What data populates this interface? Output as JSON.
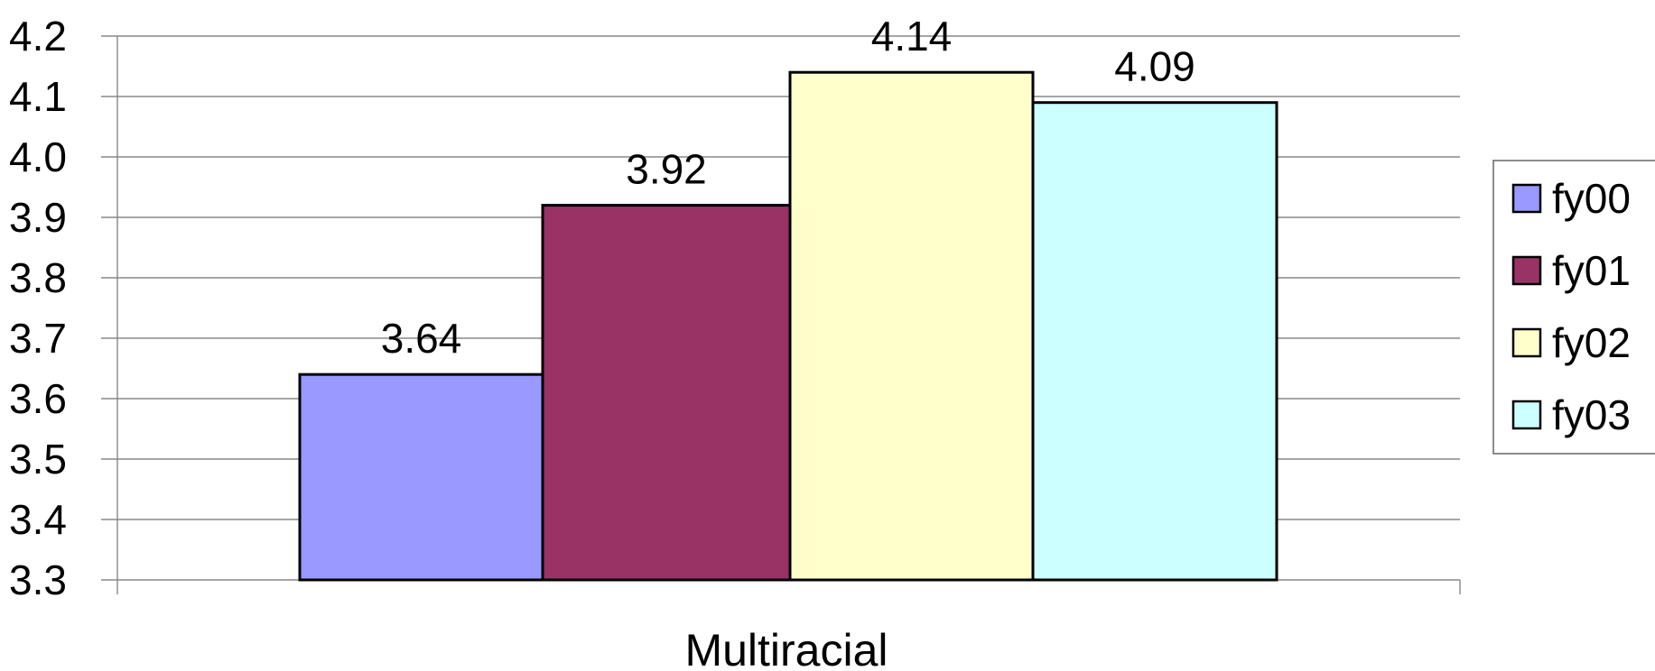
{
  "chart_data": {
    "type": "bar",
    "categories": [
      "Multiracial"
    ],
    "series": [
      {
        "name": "fy00",
        "values": [
          3.64
        ],
        "color": "#9999FF"
      },
      {
        "name": "fy01",
        "values": [
          3.92
        ],
        "color": "#993366"
      },
      {
        "name": "fy02",
        "values": [
          4.14
        ],
        "color": "#FFFFCC"
      },
      {
        "name": "fy03",
        "values": [
          4.09
        ],
        "color": "#CCFFFF"
      }
    ],
    "data_labels": [
      "3.64",
      "3.92",
      "4.14",
      "4.09"
    ],
    "y_ticks": [
      "3.3",
      "3.4",
      "3.5",
      "3.6",
      "3.7",
      "3.8",
      "3.9",
      "4.0",
      "4.1",
      "4.2"
    ],
    "ylim": [
      3.3,
      4.2
    ],
    "grid": true,
    "legend_position": "right"
  }
}
